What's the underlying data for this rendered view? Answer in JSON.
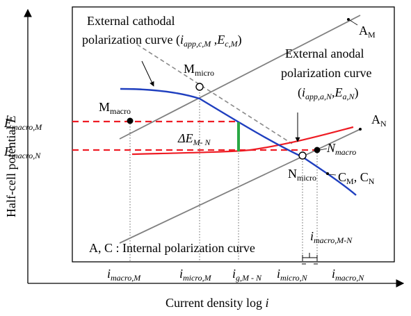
{
  "axes": {
    "y_label_main": "Half-cell potential ",
    "y_label_var": "E",
    "x_label_main": "Current density log ",
    "x_label_var": "i"
  },
  "annotations": {
    "cathodal_line1": "External cathodal",
    "cathodal_line2": "polarization curve (",
    "cathodal_i": "i",
    "cathodal_i_sub": "app,c,M",
    "cathodal_sep": " ,",
    "cathodal_E": "E",
    "cathodal_E_sub": "c,M",
    "cathodal_close": ")",
    "anodal_line1": "External anodal",
    "anodal_line2": "polarization curve",
    "anodal_open": "(",
    "anodal_i": "i",
    "anodal_i_sub": "app,a,N",
    "anodal_sep": ",",
    "anodal_E": "E",
    "anodal_E_sub": "a,N",
    "anodal_close": ")",
    "internal_note": "A, C : Internal polarization curve"
  },
  "points": {
    "A_M": {
      "main": "A",
      "sub": "M"
    },
    "A_N": {
      "main": "A",
      "sub": "N"
    },
    "M_micro": {
      "main": "M",
      "sub": "micro"
    },
    "M_macro": {
      "main": "M",
      "sub": "macro"
    },
    "N_micro": {
      "main": "N",
      "sub": "micro"
    },
    "N_macro": {
      "main": "N",
      "sub": "macro"
    },
    "C_M": {
      "main": "C",
      "sub": "M"
    },
    "C_N": {
      "main": "C",
      "sub": "N"
    },
    "C_sep": ",  "
  },
  "potential_labels": {
    "E_macro_M": {
      "main": "E",
      "sub": "macro,M"
    },
    "E_macro_N": {
      "main": "E",
      "sub": "macro,N"
    },
    "delta": {
      "main": "ΔE",
      "sub": "M-  N"
    }
  },
  "current_labels": {
    "i_macro_M": {
      "main": "i",
      "sub": "macro,M"
    },
    "i_micro_M": {
      "main": "i",
      "sub": "micro,M"
    },
    "i_g_MN": {
      "main": "i",
      "sub": "g,M - N"
    },
    "i_micro_N": {
      "main": "i",
      "sub": "micro,N"
    },
    "i_macro_N": {
      "main": "i",
      "sub": "macro,N"
    },
    "i_macro_MN": {
      "main": "i",
      "sub": "macro,M-N"
    }
  },
  "colors": {
    "cathodic_curve": "#1f3fbf",
    "anodic_curve": "#ee1c24",
    "potential_gap": "#2aa845",
    "internal_lines": "#808080",
    "dashed_extension": "#8a8a8a",
    "dashed_potential": "#ee1c24"
  }
}
